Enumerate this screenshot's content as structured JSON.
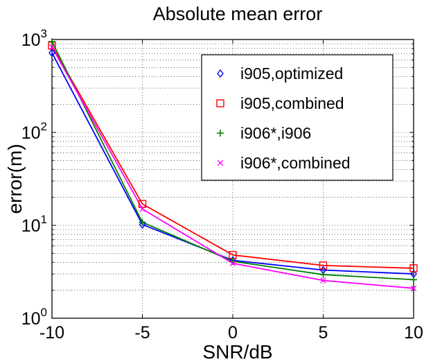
{
  "chart_data": {
    "type": "line",
    "title": "Absolute mean error",
    "xlabel": "SNR/dB",
    "ylabel": "error(m)",
    "x_scale": "linear",
    "y_scale": "log",
    "xlim": [
      -10,
      10
    ],
    "ylim": [
      1,
      1000
    ],
    "x_ticks": [
      -10,
      -5,
      0,
      5,
      10
    ],
    "x_tick_labels": [
      "-10",
      "-5",
      "0",
      "5",
      "10"
    ],
    "y_ticks": [
      1,
      10,
      100,
      1000
    ],
    "y_tick_labels": [
      {
        "base": "10",
        "exp": "0"
      },
      {
        "base": "10",
        "exp": "1"
      },
      {
        "base": "10",
        "exp": "2"
      },
      {
        "base": "10",
        "exp": "3"
      }
    ],
    "grid": true,
    "legend_position": "top-right",
    "x": [
      -10,
      -5,
      0,
      5,
      10
    ],
    "series": [
      {
        "name": "i905,optimized",
        "color": "#0000ff",
        "marker": "diamond",
        "values": [
          720,
          10.2,
          4.2,
          3.3,
          3.0
        ]
      },
      {
        "name": "i905,combined",
        "color": "#ff0000",
        "marker": "square",
        "values": [
          860,
          17,
          4.8,
          3.7,
          3.45
        ]
      },
      {
        "name": "i906*,i906",
        "color": "#008000",
        "marker": "plus",
        "values": [
          950,
          10.8,
          4.1,
          2.95,
          2.6
        ]
      },
      {
        "name": "i906*,combined",
        "color": "#ff00ff",
        "marker": "x",
        "values": [
          830,
          15,
          3.9,
          2.55,
          2.1
        ]
      }
    ]
  }
}
